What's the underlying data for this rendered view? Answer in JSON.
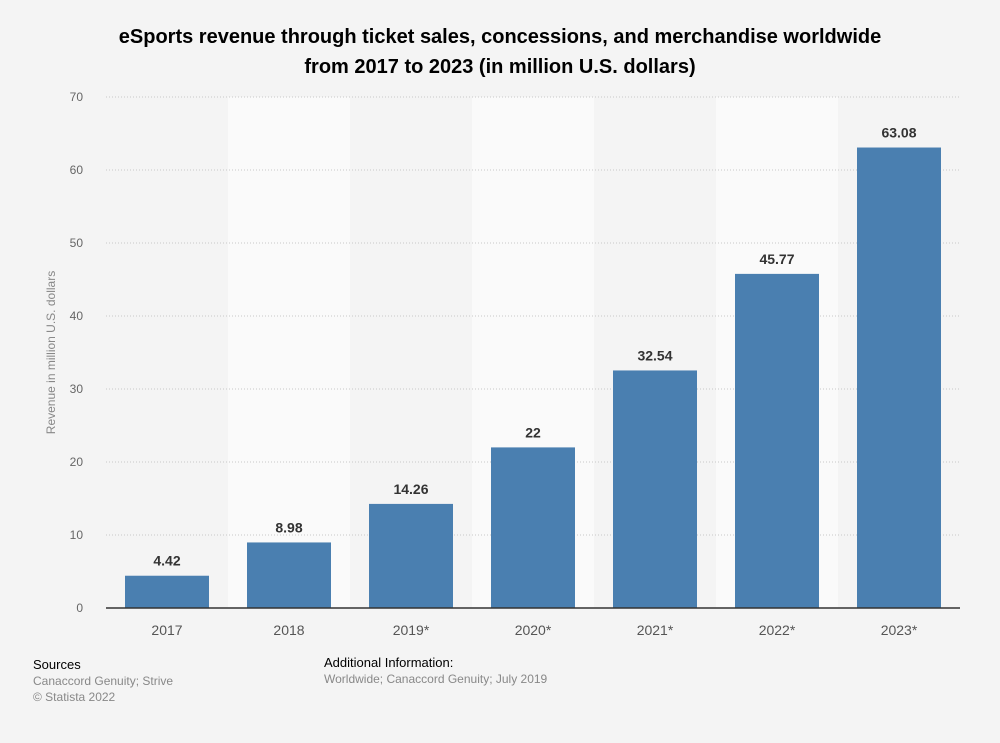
{
  "chart_data": {
    "type": "bar",
    "title": "eSports revenue through ticket sales, concessions, and merchandise worldwide from 2017 to 2023 (in million U.S. dollars)",
    "categories": [
      "2017",
      "2018",
      "2019*",
      "2020*",
      "2021*",
      "2022*",
      "2023*"
    ],
    "values": [
      4.42,
      8.98,
      14.26,
      22,
      32.54,
      45.77,
      63.08
    ],
    "value_labels": [
      "4.42",
      "8.98",
      "14.26",
      "22",
      "32.54",
      "45.77",
      "63.08"
    ],
    "xlabel": "",
    "ylabel": "Revenue in million U.S. dollars",
    "ylim": [
      0,
      70
    ],
    "yticks": [
      0,
      10,
      20,
      30,
      40,
      50,
      60,
      70
    ],
    "grid": true,
    "bar_color": "#4a7fb0"
  },
  "footer": {
    "sources_heading": "Sources",
    "sources": "Canaccord Genuity; Strive",
    "copyright": "© Statista 2022",
    "additional_heading": "Additional Information:",
    "additional": "Worldwide; Canaccord Genuity; July 2019"
  }
}
